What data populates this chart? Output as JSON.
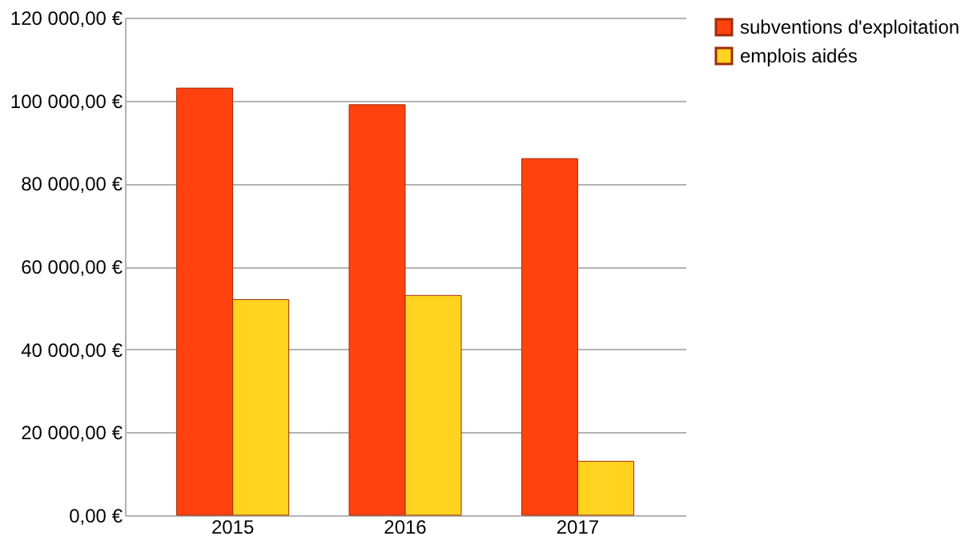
{
  "chart_data": {
    "type": "bar",
    "categories": [
      "2015",
      "2016",
      "2017"
    ],
    "series": [
      {
        "name": "subventions d'exploitation",
        "color": "#ff420e",
        "values": [
          103000,
          99000,
          86000
        ]
      },
      {
        "name": "emplois aidés",
        "color": "#ffd320",
        "values": [
          52000,
          53000,
          13000
        ]
      }
    ],
    "ylim": [
      0,
      120000
    ],
    "yticks": [
      {
        "value": 0,
        "label": "0,00 €"
      },
      {
        "value": 20000,
        "label": "20 000,00 €"
      },
      {
        "value": 40000,
        "label": "40 000,00 €"
      },
      {
        "value": 60000,
        "label": "60 000,00 €"
      },
      {
        "value": 80000,
        "label": "80 000,00 €"
      },
      {
        "value": 100000,
        "label": "100 000,00 €"
      },
      {
        "value": 120000,
        "label": "120 000,00 €"
      }
    ],
    "grid": "y",
    "legend": "right"
  }
}
